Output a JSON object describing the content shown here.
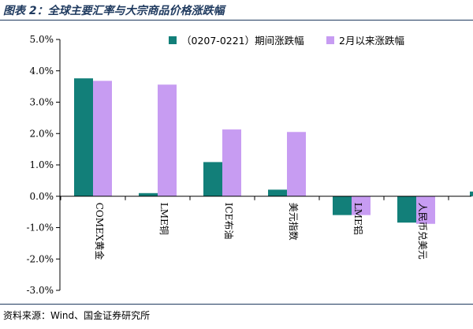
{
  "header": {
    "title": "图表 2：全球主要汇率与大宗商品价格涨跌幅"
  },
  "footer": {
    "source": "资料来源：Wind、国金证券研究所"
  },
  "chart_data": {
    "type": "bar",
    "title": "",
    "xlabel": "",
    "ylabel": "",
    "categories": [
      "COMEX黄金",
      "LME铜",
      "ICE布油",
      "美元指数",
      "LME铝",
      "人民币兑美元"
    ],
    "series": [
      {
        "name": "（0207-0221）期间涨跌幅",
        "color": "#127f79",
        "values": [
          3.76,
          0.1,
          1.09,
          0.21,
          -0.6,
          -0.84
        ]
      },
      {
        "name": "2月以来涨跌幅",
        "color": "#c79cf2",
        "values": [
          3.68,
          3.56,
          2.13,
          2.05,
          -0.6,
          -0.88
        ]
      }
    ],
    "extra_bar": {
      "value": 0.15,
      "color": "#127f79"
    },
    "ylim": [
      -3.0,
      5.0
    ],
    "yticks": [
      "5.0%",
      "4.0%",
      "3.0%",
      "2.0%",
      "1.0%",
      "0.0%",
      "-1.0%",
      "-2.0%",
      "-3.0%"
    ],
    "legend_position": "top",
    "grid": false
  }
}
